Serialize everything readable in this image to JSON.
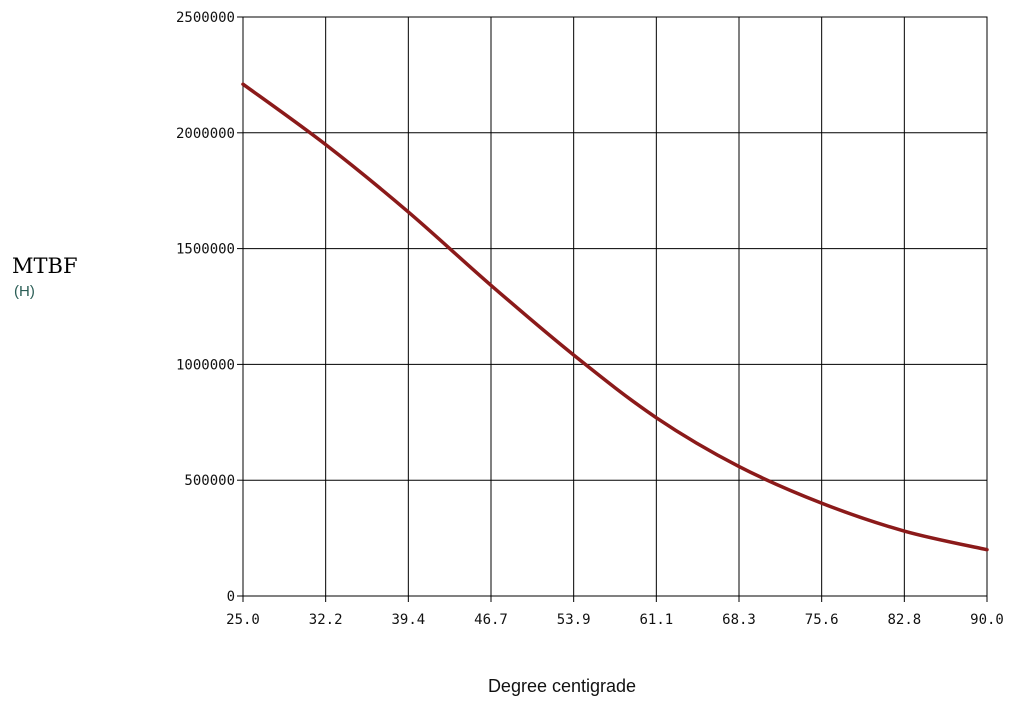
{
  "chart_data": {
    "type": "line",
    "ylabel": "MTBF",
    "ylabel_unit": "(H)",
    "xlabel": "Degree centigrade",
    "x_ticks": [
      "25.0",
      "32.2",
      "39.4",
      "46.7",
      "53.9",
      "61.1",
      "68.3",
      "75.6",
      "82.8",
      "90.0"
    ],
    "y_ticks": [
      "0",
      "500000",
      "1000000",
      "1500000",
      "2000000",
      "2500000"
    ],
    "xlim": [
      25.0,
      90.0
    ],
    "ylim": [
      0,
      2500000
    ],
    "grid": true,
    "series": [
      {
        "color": "#8b1a1a",
        "x": [
          25.0,
          32.2,
          39.4,
          46.7,
          53.9,
          61.1,
          68.3,
          75.6,
          82.8,
          90.0
        ],
        "y": [
          2210000,
          1950000,
          1660000,
          1340000,
          1040000,
          770000,
          560000,
          400000,
          280000,
          200000
        ]
      }
    ]
  }
}
